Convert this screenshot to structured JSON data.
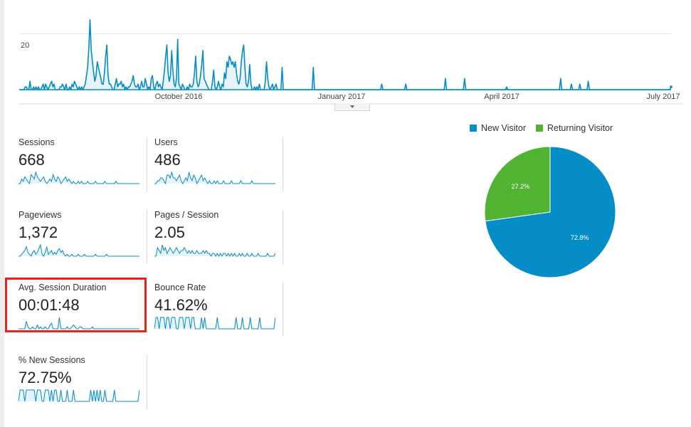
{
  "colors": {
    "accent": "#058dc7",
    "area_fill": "#e6f3fa",
    "new_visitor": "#058dc7",
    "returning_visitor": "#50b432",
    "highlight": "#e8221b"
  },
  "chart_data": [
    {
      "type": "area",
      "ytick_label": "20",
      "xtick_labels": [
        "October 2016",
        "January 2017",
        "April 2017",
        "July 2017"
      ],
      "ylim": [
        0,
        27
      ],
      "grid": true,
      "series": [
        {
          "values": [
            0,
            0,
            0,
            0,
            0,
            1,
            1,
            0,
            0,
            3,
            0,
            0,
            1,
            0,
            1,
            0,
            1,
            0,
            0,
            1,
            2,
            0,
            2,
            1,
            0,
            1,
            2,
            3,
            1,
            2,
            0,
            0,
            0,
            0,
            1,
            1,
            2,
            1,
            0,
            2,
            0,
            0,
            1,
            0,
            2,
            1,
            3,
            2,
            1,
            0,
            1,
            0,
            1,
            0,
            1,
            2,
            5,
            8,
            15,
            25,
            14,
            10,
            6,
            3,
            5,
            10,
            8,
            6,
            4,
            2,
            2,
            6,
            12,
            16,
            5,
            2,
            2,
            1,
            0,
            0,
            2,
            4,
            1,
            2,
            2,
            3,
            1,
            2,
            0,
            1,
            0,
            1,
            1,
            2,
            3,
            5,
            2,
            1,
            1,
            2,
            0,
            1,
            3,
            1,
            1,
            4,
            2,
            0,
            1,
            0,
            4,
            5,
            1,
            0,
            2,
            3,
            1,
            2,
            1,
            0,
            3,
            7,
            12,
            16,
            6,
            3,
            5,
            14,
            7,
            2,
            1,
            4,
            18,
            2,
            1,
            0,
            2,
            1,
            0,
            0,
            1,
            0,
            2,
            1,
            1,
            2,
            6,
            12,
            3,
            1,
            2,
            5,
            9,
            14,
            4,
            3,
            2,
            1,
            0,
            0,
            0,
            3,
            7,
            1,
            0,
            1,
            3,
            1,
            0,
            2,
            1,
            6,
            4,
            10,
            8,
            12,
            11,
            9,
            10,
            8,
            10,
            6,
            3,
            2,
            4,
            10,
            14,
            16,
            8,
            2,
            1,
            3,
            9,
            2,
            0,
            0,
            1,
            0,
            1,
            0,
            2,
            0,
            0,
            0,
            0,
            3,
            10,
            4,
            1,
            0,
            1,
            2,
            0,
            1,
            2,
            0,
            0,
            0,
            0,
            8,
            0,
            0,
            0,
            0,
            0,
            0,
            0,
            0,
            0,
            0,
            0,
            0,
            0,
            0,
            0,
            0,
            0,
            0,
            0,
            0,
            0,
            0,
            0,
            0,
            0,
            8,
            0,
            0,
            0,
            0,
            0,
            0,
            0,
            0,
            0,
            0,
            0,
            0,
            0,
            0,
            0,
            0,
            0,
            0,
            0,
            0,
            0,
            0,
            0,
            0,
            0,
            0,
            0,
            0,
            0,
            0,
            0,
            0,
            0,
            0,
            0,
            0,
            0,
            0,
            0,
            0,
            0,
            0,
            0,
            0,
            0,
            0,
            0,
            0,
            0,
            0,
            0,
            0,
            0,
            0,
            0,
            0,
            2,
            0,
            0,
            0,
            0,
            0,
            0,
            0,
            0,
            0,
            0,
            0,
            0,
            0,
            0,
            0,
            0,
            0,
            0,
            0,
            2,
            0,
            0,
            0,
            0,
            0,
            0,
            0,
            0,
            0,
            0,
            0,
            0,
            0,
            0,
            0,
            0,
            0,
            0,
            0,
            0,
            0,
            0,
            0,
            0,
            0,
            0,
            0,
            0,
            0,
            0,
            0,
            0,
            4,
            0,
            0,
            0,
            0,
            0,
            0,
            0,
            0,
            0,
            0,
            0,
            0,
            0,
            0,
            0,
            4,
            0,
            0,
            0,
            0,
            0,
            0,
            0,
            0,
            0,
            0,
            0,
            0,
            0,
            0,
            0,
            0,
            0,
            0,
            0,
            0,
            0,
            0,
            0,
            0,
            0,
            0,
            0,
            0,
            0,
            0,
            0,
            0,
            0,
            0,
            1,
            0,
            0,
            0,
            0,
            0,
            0,
            0,
            0,
            0,
            0,
            0,
            0,
            0,
            0,
            0,
            0,
            0,
            0,
            0,
            0,
            0,
            0,
            0,
            0,
            0,
            0,
            0,
            0,
            0,
            0,
            0,
            0,
            0,
            0,
            0,
            0,
            0,
            0,
            0,
            0,
            0,
            0,
            0,
            0,
            4,
            0,
            0,
            0,
            0,
            0,
            0,
            0,
            0,
            2,
            0,
            0,
            0,
            0,
            0,
            0,
            2,
            0,
            0,
            0,
            0,
            0,
            0,
            3,
            0,
            0,
            0,
            0,
            0,
            0,
            0,
            0,
            0,
            0,
            0,
            0,
            0,
            0,
            0,
            0,
            0,
            0,
            0,
            0,
            0,
            0,
            0,
            0,
            0,
            0,
            0,
            0,
            0,
            0,
            0,
            0,
            0,
            0,
            0,
            0,
            0,
            0,
            0,
            0,
            0,
            0,
            0,
            0,
            0,
            0,
            0,
            0,
            0,
            0,
            0,
            0,
            0,
            0,
            0,
            0,
            0,
            0,
            0,
            0,
            0,
            0,
            0,
            0,
            0,
            0,
            0,
            0,
            1
          ]
        }
      ]
    },
    {
      "type": "pie",
      "legend": "top",
      "categories": [
        "New Visitor",
        "Returning Visitor"
      ],
      "values": [
        72.8,
        27.2
      ],
      "slice_labels": [
        "72.8%",
        "27.2%"
      ]
    }
  ],
  "metrics": [
    {
      "label": "Sessions",
      "value": "668",
      "spark": [
        0,
        0,
        2,
        1,
        3,
        2,
        1,
        0,
        4,
        3,
        2,
        5,
        3,
        2,
        1,
        2,
        3,
        1,
        0,
        1,
        2,
        1,
        4,
        2,
        1,
        3,
        2,
        0,
        1,
        2,
        3,
        1,
        2,
        1,
        0,
        1,
        0,
        0,
        1,
        0,
        1,
        0,
        0,
        0,
        1,
        0,
        0,
        0,
        0,
        1,
        0,
        0,
        0,
        0,
        0,
        1,
        0,
        0,
        0,
        0,
        0,
        0,
        1,
        0,
        0,
        0,
        0,
        0,
        0,
        0,
        0,
        0,
        0,
        0,
        0,
        0,
        0,
        0
      ]
    },
    {
      "label": "Users",
      "value": "486",
      "spark": [
        0,
        0,
        1,
        1,
        2,
        2,
        1,
        0,
        3,
        3,
        2,
        4,
        2,
        2,
        1,
        2,
        3,
        1,
        0,
        1,
        2,
        1,
        4,
        2,
        1,
        3,
        2,
        0,
        1,
        2,
        3,
        1,
        2,
        1,
        0,
        1,
        0,
        0,
        1,
        0,
        1,
        0,
        0,
        0,
        1,
        0,
        0,
        0,
        0,
        1,
        0,
        0,
        0,
        0,
        0,
        1,
        0,
        0,
        0,
        0,
        0,
        0,
        1,
        0,
        0,
        0,
        0,
        0,
        0,
        0,
        0,
        0,
        0,
        0,
        0,
        0,
        0,
        0
      ]
    },
    {
      "label": "Pageviews",
      "value": "1,372",
      "spark": [
        0,
        0,
        1,
        2,
        3,
        5,
        2,
        1,
        0,
        2,
        3,
        1,
        2,
        4,
        6,
        1,
        0,
        2,
        5,
        1,
        2,
        3,
        1,
        2,
        1,
        3,
        4,
        2,
        3,
        1,
        0,
        1,
        0,
        0,
        1,
        0,
        0,
        0,
        1,
        0,
        0,
        0,
        1,
        0,
        0,
        0,
        0,
        0,
        0,
        1,
        0,
        0,
        0,
        0,
        0,
        0,
        1,
        0,
        0,
        0,
        0,
        0,
        0,
        0,
        0,
        0,
        0,
        0,
        0,
        0,
        0,
        0,
        0,
        0,
        0,
        0,
        0,
        0
      ]
    },
    {
      "label": "Pages / Session",
      "value": "2.05",
      "spark": [
        0,
        0,
        3,
        2,
        1,
        4,
        2,
        3,
        1,
        2,
        3,
        2,
        1,
        2,
        3,
        2,
        1,
        2,
        2,
        3,
        2,
        1,
        2,
        1,
        2,
        1,
        1,
        2,
        1,
        1,
        1,
        2,
        1,
        2,
        1,
        1,
        0,
        1,
        1,
        0,
        1,
        0,
        1,
        0,
        1,
        1,
        0,
        1,
        0,
        1,
        0,
        1,
        0,
        0,
        1,
        0,
        1,
        0,
        0,
        1,
        0,
        0,
        1,
        0,
        0,
        0,
        1,
        0,
        0,
        0,
        0,
        0,
        1,
        0,
        0,
        0,
        0,
        1
      ]
    },
    {
      "label": "Avg. Session Duration",
      "value": "00:01:48",
      "spark": [
        0,
        0,
        0,
        0,
        0,
        4,
        1,
        0,
        0,
        1,
        0,
        0,
        2,
        0,
        1,
        0,
        0,
        1,
        0,
        0,
        2,
        3,
        0,
        0,
        0,
        0,
        6,
        0,
        0,
        0,
        0,
        1,
        0,
        0,
        1,
        2,
        1,
        0,
        0,
        1,
        1,
        0,
        0,
        0,
        0,
        0,
        0,
        1,
        0,
        0,
        0,
        0,
        0,
        0,
        0,
        0,
        0,
        0,
        0,
        0,
        0,
        0,
        0,
        0,
        0,
        0,
        0,
        0,
        0,
        0,
        0,
        0,
        0,
        0,
        0,
        0,
        0,
        0
      ]
    },
    {
      "label": "Bounce Rate",
      "value": "41.62%",
      "spark": [
        0,
        1,
        1,
        0,
        1,
        1,
        1,
        0,
        1,
        1,
        0,
        1,
        1,
        1,
        0,
        0,
        1,
        1,
        1,
        0,
        1,
        1,
        1,
        0,
        1,
        1,
        0,
        0,
        0,
        0,
        1,
        0,
        1,
        0,
        0,
        0,
        0,
        0,
        0,
        0,
        1,
        0,
        0,
        0,
        0,
        0,
        0,
        0,
        0,
        0,
        0,
        0,
        1,
        0,
        0,
        0,
        1,
        0,
        0,
        0,
        0,
        1,
        0,
        0,
        0,
        0,
        0,
        1,
        0,
        0,
        0,
        0,
        0,
        0,
        0,
        0,
        0,
        1
      ]
    },
    {
      "label": "% New Sessions",
      "value": "72.75%",
      "spark": [
        0,
        1,
        1,
        1,
        0,
        1,
        1,
        1,
        1,
        1,
        1,
        0,
        1,
        1,
        1,
        0,
        0,
        1,
        1,
        1,
        0,
        1,
        0,
        1,
        1,
        0,
        0,
        1,
        0,
        0,
        0,
        1,
        0,
        0,
        0,
        1,
        0,
        0,
        0,
        0,
        0,
        0,
        0,
        0,
        0,
        0,
        1,
        0,
        1,
        0,
        1,
        0,
        1,
        0,
        0,
        1,
        0,
        0,
        0,
        0,
        0,
        1,
        0,
        0,
        0,
        0,
        0,
        0,
        0,
        0,
        0,
        0,
        0,
        0,
        0,
        0,
        0,
        1
      ]
    }
  ]
}
